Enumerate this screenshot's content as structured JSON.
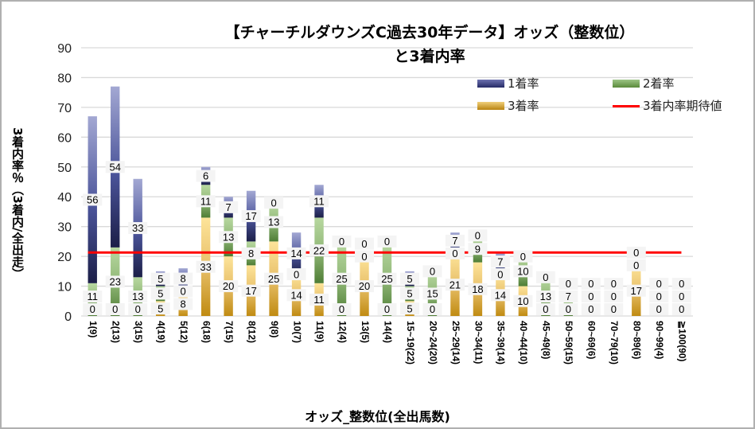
{
  "chart_data": {
    "type": "bar",
    "stacked": true,
    "title": "【チャーチルダウンズC過去30年データ】オッズ（整数位）と3着内率",
    "title_line1": "【チャーチルダウンズC過去30年データ】オッズ（整数位）",
    "title_line2": "と3着内率",
    "xlabel": "オッズ_整数位(全出馬数)",
    "ylabel": "3着内率％（3着内/全出走）",
    "ylim": [
      0,
      90
    ],
    "yticks": [
      0,
      10,
      20,
      30,
      40,
      50,
      60,
      70,
      80,
      90
    ],
    "grid": true,
    "legend_position": "top-right",
    "categories": [
      "1(9)",
      "2(13)",
      "3(15)",
      "4(19)",
      "5(12)",
      "6(18)",
      "7(15)",
      "8(12)",
      "9(8)",
      "10(7)",
      "11(9)",
      "12(4)",
      "13(5)",
      "14(4)",
      "15~19(22)",
      "20~24(20)",
      "25~29(14)",
      "30~34(11)",
      "35~39(14)",
      "40~44(10)",
      "45~49(8)",
      "50~59(15)",
      "60~69(6)",
      "70~79(10)",
      "80~89(6)",
      "90~99(4)",
      "≧100(90)"
    ],
    "series": [
      {
        "name": "3着率",
        "color": "#c9961a",
        "values": [
          0,
          0,
          0,
          5,
          8,
          33,
          20,
          17,
          25,
          14,
          11,
          0,
          20,
          0,
          5,
          0,
          21,
          18,
          14,
          10,
          0,
          0,
          0,
          0,
          17,
          0,
          0
        ]
      },
      {
        "name": "2着率",
        "color": "#5a8a3a",
        "values": [
          11,
          23,
          13,
          5,
          0,
          11,
          13,
          8,
          13,
          0,
          22,
          25,
          0,
          25,
          5,
          15,
          0,
          9,
          0,
          10,
          13,
          7,
          0,
          0,
          0,
          0,
          0
        ]
      },
      {
        "name": "1着率",
        "color": "#2a2f70",
        "values": [
          56,
          54,
          33,
          5,
          8,
          6,
          7,
          17,
          0,
          14,
          11,
          0,
          0,
          0,
          5,
          0,
          7,
          0,
          7,
          0,
          0,
          0,
          0,
          0,
          0,
          0,
          0
        ]
      }
    ],
    "reference_line": {
      "name": "3着内率期待値",
      "color": "#ff0000",
      "value": 21.3
    }
  },
  "legend": {
    "items": [
      {
        "label": "1着率"
      },
      {
        "label": "2着率"
      },
      {
        "label": "3着率"
      },
      {
        "label": "3着内率期待値"
      }
    ]
  }
}
